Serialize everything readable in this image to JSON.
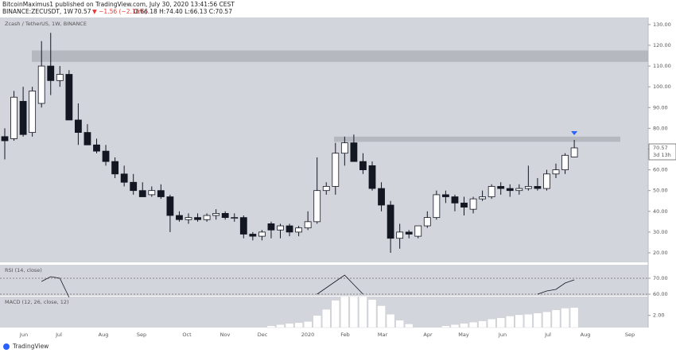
{
  "header": {
    "published": "BitcoinMaximus1 published on TradingView.com, July 30, 2020 13:41:56 CEST",
    "symbol": "BINANCE:ZECUSDT, 1W",
    "last": "70.57",
    "change": "▼ −1.56 (−2.16%)",
    "ohlc": "O:66.18 H:74.40 L:66.13 C:70.57"
  },
  "footer": "TradingView",
  "x_axis_labels": [
    "Jun",
    "Jul",
    "Aug",
    "Sep",
    "Oct",
    "Nov",
    "Dec",
    "2020",
    "Feb",
    "Mar",
    "Apr",
    "May",
    "Jun",
    "Jul",
    "Aug",
    "Sep"
  ],
  "chart_data": [
    {
      "type": "candlestick",
      "title": "Zcash / TetherUS, 1W, BINANCE",
      "open": [
        76,
        75,
        93,
        78,
        92,
        110,
        103,
        106,
        84,
        78,
        72,
        69,
        64,
        58,
        54,
        50,
        48,
        50,
        47,
        38,
        36,
        37,
        36,
        38,
        39,
        37,
        37,
        29,
        28,
        34,
        31,
        33,
        30,
        32,
        35,
        50,
        52,
        68,
        73,
        64,
        62,
        51,
        43,
        27,
        30,
        28,
        33,
        37,
        48,
        47,
        44,
        41,
        46,
        47,
        52,
        51,
        50,
        51,
        52,
        51,
        58,
        60,
        66.18
      ],
      "high": [
        80,
        98,
        100,
        100,
        122,
        126,
        110,
        108,
        92,
        82,
        75,
        72,
        66,
        62,
        58,
        54,
        52,
        53,
        48,
        40,
        39,
        39,
        39,
        41,
        40,
        39,
        38,
        30,
        31,
        35,
        34,
        34,
        33,
        40,
        66,
        54,
        73,
        76,
        77,
        68,
        64,
        54,
        45,
        34,
        31,
        33,
        40,
        50,
        50,
        48,
        47,
        47,
        50,
        53,
        54,
        53,
        53,
        62,
        56,
        60,
        63,
        68,
        74.4
      ],
      "low": [
        65,
        74,
        76,
        76,
        90,
        96,
        100,
        84,
        72,
        72,
        68,
        62,
        56,
        52,
        48,
        47,
        47,
        46,
        30,
        35,
        34,
        35,
        35,
        36,
        36,
        35,
        27,
        26,
        26,
        27,
        27,
        28,
        28,
        31,
        34,
        48,
        48,
        62,
        64,
        58,
        50,
        40,
        20,
        22,
        27,
        27,
        32,
        36,
        44,
        40,
        38,
        39,
        45,
        46,
        48,
        47,
        48,
        50,
        50,
        50,
        56,
        58,
        66.13
      ],
      "close": [
        74,
        95,
        77,
        98,
        110,
        103,
        106,
        84,
        78,
        72,
        69,
        64,
        58,
        54,
        50,
        47,
        50,
        47,
        38,
        36,
        37,
        36,
        38,
        39,
        37,
        37,
        29,
        28,
        30,
        31,
        33,
        30,
        32,
        35,
        50,
        52,
        68,
        73,
        64,
        60,
        51,
        43,
        27,
        30,
        29,
        33,
        37,
        48,
        47,
        44,
        42,
        46,
        47,
        52,
        51,
        50,
        51,
        52,
        51,
        58,
        60,
        67,
        70.57
      ],
      "up_color": "#ffffff",
      "down_color": "#131722",
      "ylim": [
        15.4,
        133.4
      ],
      "yticks": [
        {
          "value": 20,
          "label": "20.00"
        },
        {
          "value": 30,
          "label": "30.00"
        },
        {
          "value": 40,
          "label": "40.00"
        },
        {
          "value": 50,
          "label": "50.00"
        },
        {
          "value": 60,
          "label": "60.00"
        },
        {
          "value": 70,
          "label": "70.00"
        },
        {
          "value": 80,
          "label": "80.00"
        },
        {
          "value": 90,
          "label": "90.00"
        },
        {
          "value": 100,
          "label": "100.00"
        },
        {
          "value": 110,
          "label": "110.00"
        },
        {
          "value": 120,
          "label": "120.00"
        },
        {
          "value": 130,
          "label": "130.00"
        }
      ],
      "zones": [
        {
          "from": 112,
          "to": 117.5
        },
        {
          "from": 73.5,
          "to": 76
        }
      ],
      "last_price": 70.57,
      "countdown": "3d 13h"
    },
    {
      "type": "line",
      "title": "RSI (14, close)",
      "color": "#131722",
      "values": [
        null,
        null,
        null,
        null,
        68,
        71,
        70,
        58,
        null,
        null,
        null,
        null,
        null,
        null,
        null,
        null,
        null,
        null,
        null,
        null,
        null,
        null,
        null,
        null,
        null,
        null,
        null,
        null,
        null,
        null,
        null,
        null,
        null,
        null,
        60,
        64,
        68,
        72,
        66,
        60,
        null,
        null,
        null,
        null,
        null,
        null,
        null,
        null,
        null,
        null,
        null,
        null,
        null,
        null,
        null,
        null,
        null,
        null,
        60,
        62,
        63,
        67,
        69
      ],
      "ylim": [
        59,
        78.5
      ],
      "yticks": [
        {
          "value": 60,
          "label": "60.00"
        },
        {
          "value": 70,
          "label": "70.00"
        }
      ]
    },
    {
      "type": "bar",
      "title": "MACD (12, 26, close, 12)",
      "color": "#ffffff",
      "values": [
        null,
        null,
        null,
        null,
        null,
        null,
        null,
        null,
        null,
        null,
        null,
        null,
        null,
        null,
        null,
        null,
        null,
        null,
        null,
        null,
        null,
        null,
        null,
        null,
        null,
        null,
        null,
        null,
        null,
        0.3,
        0.5,
        0.7,
        0.8,
        1.0,
        2.0,
        3.0,
        4.5,
        5.1,
        5.1,
        5.1,
        4.6,
        3.6,
        2.2,
        1.2,
        0.6,
        null,
        null,
        null,
        0.3,
        0.5,
        0.7,
        0.9,
        1.1,
        1.4,
        1.6,
        1.9,
        2.1,
        2.2,
        2.4,
        2.6,
        2.9,
        3.2,
        3.3
      ],
      "ylim": [
        0,
        5.1
      ],
      "yticks": [
        {
          "value": 2,
          "label": "2.00"
        }
      ]
    }
  ]
}
